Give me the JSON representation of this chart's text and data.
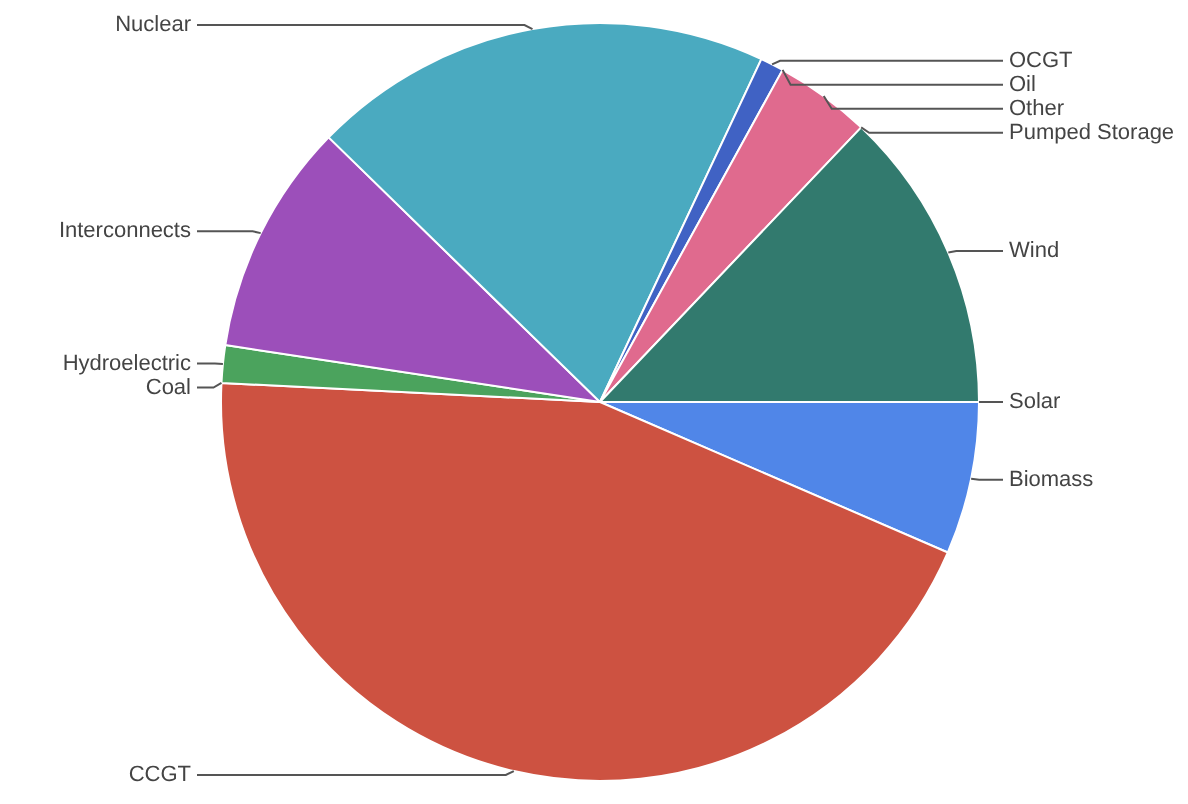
{
  "chart_data": {
    "type": "pie",
    "categories": [
      "Biomass",
      "CCGT",
      "Coal",
      "Hydroelectric",
      "Interconnects",
      "Nuclear",
      "OCGT",
      "Oil",
      "Other",
      "Pumped Storage",
      "Wind",
      "Solar"
    ],
    "values": [
      6.5,
      44.3,
      0,
      1.6,
      9.9,
      19.7,
      1.0,
      0,
      4.1,
      0,
      12.9,
      0
    ],
    "colors": [
      "#5086e8",
      "#cd5241",
      "#f2a93b",
      "#4ba35d",
      "#9c4fba",
      "#4aaac0",
      "#4062c4",
      "#8a8a8a",
      "#e06a8e",
      "#e6a23c",
      "#327a6e",
      "#f5d142"
    ]
  }
}
